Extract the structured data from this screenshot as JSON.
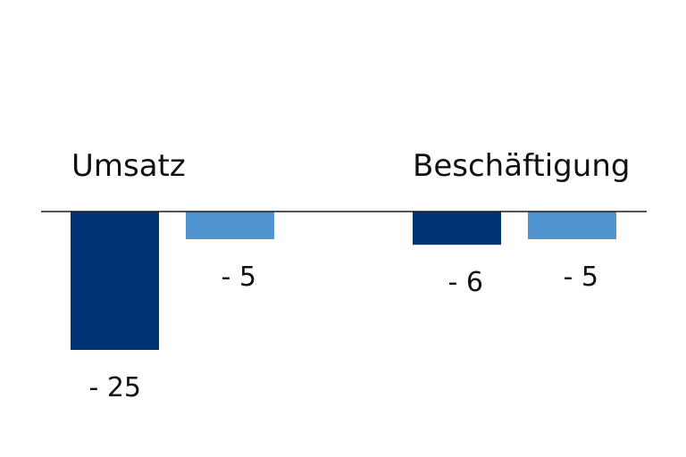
{
  "chart_data": {
    "type": "bar",
    "categories": [
      "Umsatz",
      "Beschäftigung"
    ],
    "series": [
      {
        "color": "#003473",
        "values": [
          -25,
          -6
        ],
        "labels": [
          "- 25",
          "- 6"
        ]
      },
      {
        "color": "#5195D0",
        "values": [
          -5,
          -5
        ],
        "labels": [
          "- 5",
          "- 5"
        ]
      }
    ],
    "ylim": [
      -25,
      0
    ],
    "grid": false,
    "legend": "none"
  }
}
